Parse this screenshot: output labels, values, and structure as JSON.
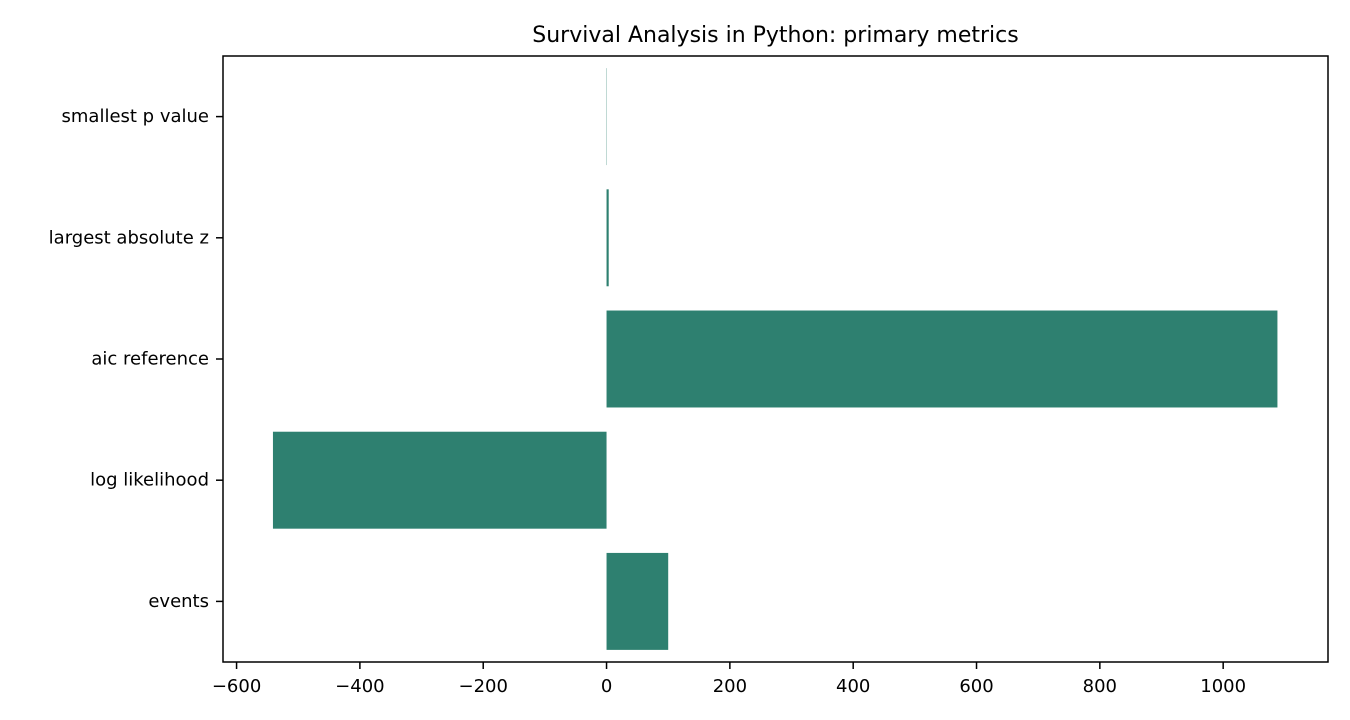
{
  "chart_data": {
    "type": "bar",
    "orientation": "horizontal",
    "title": "Survival Analysis in Python: primary metrics",
    "xlabel": "",
    "ylabel": "",
    "categories": [
      "events",
      "log likelihood",
      "aic reference",
      "largest absolute z",
      "smallest p value"
    ],
    "values": [
      100,
      -541,
      1088,
      3.5,
      0.0005
    ],
    "xlim": [
      -622,
      1170
    ],
    "xticks": [
      -600,
      -400,
      -200,
      0,
      200,
      400,
      600,
      800,
      1000
    ],
    "xtick_labels": [
      "−600",
      "−400",
      "−200",
      "0",
      "200",
      "400",
      "600",
      "800",
      "1000"
    ],
    "bar_color": "#2e8070",
    "grid": false,
    "legend": "none"
  }
}
